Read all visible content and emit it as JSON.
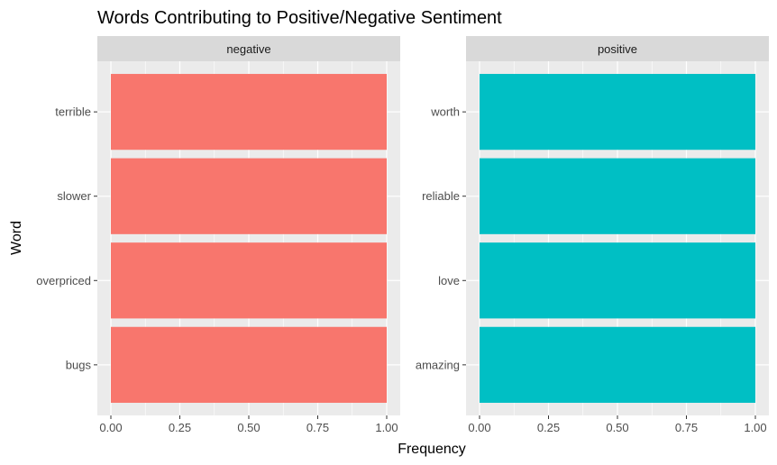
{
  "chart_data": {
    "type": "bar",
    "orientation": "horizontal",
    "title": "Words Contributing to Positive/Negative Sentiment",
    "xlabel": "Frequency",
    "ylabel": "Word",
    "xlim": [
      0,
      1
    ],
    "x_ticks": [
      "0.00",
      "0.25",
      "0.50",
      "0.75",
      "1.00"
    ],
    "grid": true,
    "legend": "none",
    "facets": [
      {
        "name": "negative",
        "color": "#F8766D",
        "categories": [
          "terrible",
          "slower",
          "overpriced",
          "bugs"
        ],
        "values": [
          1,
          1,
          1,
          1
        ]
      },
      {
        "name": "positive",
        "color": "#00BFC4",
        "categories": [
          "worth",
          "reliable",
          "love",
          "amazing"
        ],
        "values": [
          1,
          1,
          1,
          1
        ]
      }
    ]
  }
}
